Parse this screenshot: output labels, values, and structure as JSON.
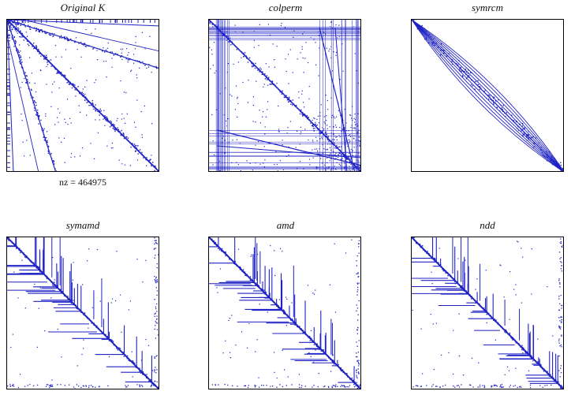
{
  "colors": {
    "nonzero": "#1f22c4",
    "frame": "#000000",
    "background": "#ffffff"
  },
  "chart_data": [
    {
      "type": "scatter",
      "title": "Original K",
      "xlabel": "nz = 464975",
      "style": "original",
      "grid": false
    },
    {
      "type": "scatter",
      "title": "colperm",
      "xlabel": "",
      "style": "colperm",
      "grid": false
    },
    {
      "type": "scatter",
      "title": "symrcm",
      "xlabel": "",
      "style": "symrcm",
      "grid": false
    },
    {
      "type": "scatter",
      "title": "symamd",
      "xlabel": "",
      "style": "tree",
      "grid": false
    },
    {
      "type": "scatter",
      "title": "amd",
      "xlabel": "",
      "style": "tree",
      "grid": false
    },
    {
      "type": "scatter",
      "title": "ndd",
      "xlabel": "",
      "style": "tree",
      "grid": false
    }
  ]
}
